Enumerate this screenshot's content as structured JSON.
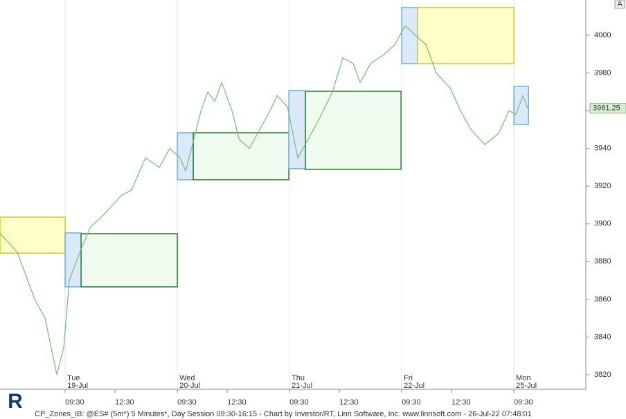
{
  "chart_data": {
    "type": "line",
    "x": [
      -3.92,
      -2.88,
      -1.83,
      -1.21,
      -0.5,
      -0.08,
      0.25,
      0.88,
      1.5,
      2.33,
      3.38,
      4,
      4.83,
      5.67,
      6.29,
      6.92,
      7.25,
      7.75,
      8.17,
      8.58,
      9,
      9.42,
      10.04,
      10.46,
      11.08,
      11.71,
      12.33,
      12.75,
      13.38,
      14,
      14.63,
      15.25,
      16.08,
      16.71,
      17.33,
      17.75,
      18.38,
      19.21,
      19.83,
      20.46,
      21.08,
      21.71,
      22.33,
      23.17,
      23.79,
      24.42,
      25.25,
      26.08,
      26.71,
      27.13,
      27.54,
      27.83
    ],
    "series": [
      {
        "color": "#6fbf6f",
        "values": [
          3895,
          3885,
          3860,
          3850,
          3820,
          3835,
          3870,
          3885,
          3898,
          3905,
          3915,
          3918,
          3935,
          3930,
          3940,
          3935,
          3928,
          3945,
          3960,
          3970,
          3965,
          3975,
          3960,
          3945,
          3940,
          3950,
          3960,
          3968,
          3962,
          3935,
          3945,
          3955,
          3970,
          3988,
          3985,
          3975,
          3985,
          3990,
          3995,
          4005,
          4000,
          3995,
          3980,
          3972,
          3960,
          3950,
          3942,
          3948,
          3960,
          3958,
          3968,
          3961.25
        ]
      }
    ],
    "last_price": 3961.25,
    "zones": [
      {
        "x0": -3.92,
        "x1": 0,
        "top": 3903.6,
        "bottom": 3884.5,
        "fill": "#ffffc8",
        "stroke": "#c8c840"
      },
      {
        "x0": 0,
        "x1": 0.96,
        "top": 3895.2,
        "bottom": 3866.6,
        "fill": "#dce9f8",
        "stroke": "#6aaeea"
      },
      {
        "x0": 0.96,
        "x1": 6.75,
        "top": 3894.8,
        "bottom": 3866.6,
        "fill": "#eefbee",
        "stroke": "#2a7a2a"
      },
      {
        "x0": 6.75,
        "x1": 7.71,
        "top": 3948.3,
        "bottom": 3923.4,
        "fill": "#dce9f8",
        "stroke": "#6aaeea"
      },
      {
        "x0": 7.71,
        "x1": 13.46,
        "top": 3948.3,
        "bottom": 3923.4,
        "fill": "#eefbee",
        "stroke": "#2a7a2a"
      },
      {
        "x0": 13.46,
        "x1": 14.46,
        "top": 3970.7,
        "bottom": 3929.3,
        "fill": "#dce9f8",
        "stroke": "#6aaeea"
      },
      {
        "x0": 14.46,
        "x1": 20.21,
        "top": 3970.3,
        "bottom": 3928.9,
        "fill": "#eefbee",
        "stroke": "#2a7a2a"
      },
      {
        "x0": 20.25,
        "x1": 21.21,
        "top": 4014.7,
        "bottom": 3985,
        "fill": "#dce9f8",
        "stroke": "#6aaeea"
      },
      {
        "x0": 21.21,
        "x1": 27,
        "top": 4014.7,
        "bottom": 3985,
        "fill": "#ffffc8",
        "stroke": "#c8c840"
      },
      {
        "x0": 27,
        "x1": 27.88,
        "top": 3972.9,
        "bottom": 3952.7,
        "fill": "#dce9f8",
        "stroke": "#6aaeea"
      }
    ],
    "xlim": [
      -3.92,
      31.33
    ],
    "ylim": [
      3812.3,
      4018.7
    ],
    "yticks": [
      3820,
      3840,
      3860,
      3880,
      3900,
      3920,
      3940,
      3960,
      3980,
      4000
    ],
    "xticks": [
      {
        "value": 0,
        "label": "09:30"
      },
      {
        "value": 3,
        "label": "12:30"
      },
      {
        "value": 6.75,
        "label": "09:30"
      },
      {
        "value": 9.75,
        "label": "12:30"
      },
      {
        "value": 13.5,
        "label": "09:30"
      },
      {
        "value": 16.5,
        "label": "12:30"
      },
      {
        "value": 20.25,
        "label": "09:30"
      },
      {
        "value": 23.25,
        "label": "12:30"
      },
      {
        "value": 27,
        "label": "09:30"
      }
    ],
    "day_labels": [
      {
        "value": 0,
        "label": "Tue",
        "date": "19-Jul"
      },
      {
        "value": 6.75,
        "label": "Wed",
        "date": "20-Jul"
      },
      {
        "value": 13.5,
        "label": "Thu",
        "date": "21-Jul"
      },
      {
        "value": 20.25,
        "label": "Fri",
        "date": "22-Jul"
      },
      {
        "value": 27,
        "label": "Mon",
        "date": "25-Jul"
      }
    ],
    "footer": "CP_Zones_IB: @ES# (5m*) 5 Minutes*, Day Session 09:30-16:15 - Chart by Investor/RT, Linn Software, Inc. www.linnsoft.com - 26-Jul-22 07:48:01",
    "button": "A"
  }
}
